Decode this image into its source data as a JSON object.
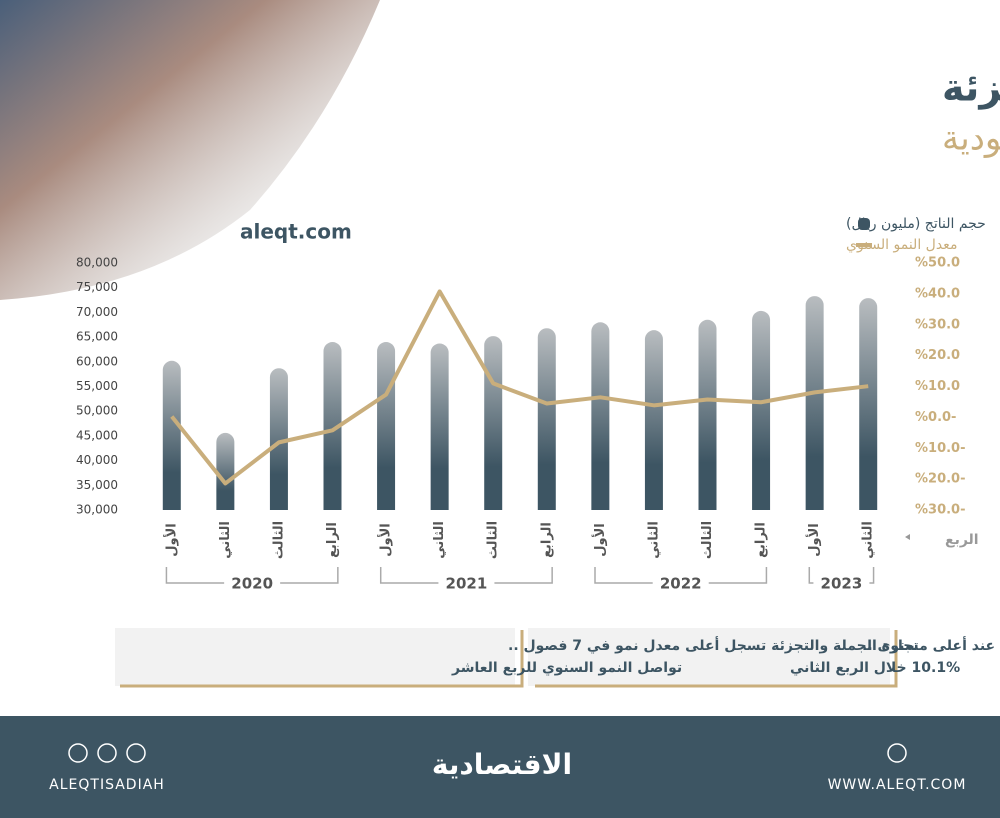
{
  "chart_data": {
    "type": "combo",
    "title": "حجم قطاع تجارة الجملة والتجزئة",
    "subtitle": "في السعودية",
    "source": "aleqt.com",
    "x_label": "الربع",
    "categories": [
      "الأول",
      "الثاني",
      "الثالث",
      "الرابع",
      "الأول",
      "الثاني",
      "الثالث",
      "الرابع",
      "الأول",
      "الثاني",
      "الثالث",
      "الرابع",
      "الأول",
      "الثاني"
    ],
    "groups": [
      {
        "label": "2020",
        "span": 4
      },
      {
        "label": "2021",
        "span": 4
      },
      {
        "label": "2022",
        "span": 4
      },
      {
        "label": "2023",
        "span": 2
      }
    ],
    "series": [
      {
        "name": "حجم الناتج (مليون ريال)",
        "type": "bar",
        "color": "#3d5563",
        "values": [
          60200,
          45600,
          58700,
          64000,
          64000,
          63700,
          65200,
          66800,
          68000,
          66400,
          68500,
          70300,
          73300,
          72900
        ]
      },
      {
        "name": "معدل النمو السنوي",
        "type": "line",
        "axis": "y2",
        "color": "#c9ae7c",
        "values": [
          0.3,
          -21.4,
          -8.1,
          -4.2,
          7.4,
          40.8,
          11,
          4.5,
          6.5,
          3.9,
          5.8,
          4.9,
          8.1,
          10.1
        ]
      }
    ],
    "ylim": [
      30000,
      80000
    ],
    "yticks": [
      {
        "value": 30000,
        "label": "30,000"
      },
      {
        "value": 35000,
        "label": "35,000"
      },
      {
        "value": 40000,
        "label": "40,000"
      },
      {
        "value": 45000,
        "label": "45,000"
      },
      {
        "value": 50000,
        "label": "50,000"
      },
      {
        "value": 55000,
        "label": "55,000"
      },
      {
        "value": 60000,
        "label": "60,000"
      },
      {
        "value": 65000,
        "label": "65,000"
      },
      {
        "value": 70000,
        "label": "70,000"
      },
      {
        "value": 75000,
        "label": "75,000"
      },
      {
        "value": 80000,
        "label": "80,000"
      }
    ],
    "y2lim": [
      -30,
      50
    ],
    "y2ticks": [
      {
        "value": -30,
        "label": "%30.0-"
      },
      {
        "value": -20,
        "label": "%20.0-"
      },
      {
        "value": -10,
        "label": "%10.0-"
      },
      {
        "value": 0,
        "label": "%0.0-"
      },
      {
        "value": 10,
        "label": "%10.0"
      },
      {
        "value": 20,
        "label": "%20.0"
      },
      {
        "value": 30,
        "label": "%30.0"
      },
      {
        "value": 40,
        "label": "%40.0"
      },
      {
        "value": 50,
        "label": "%50.0"
      }
    ]
  },
  "notes": [
    "مشاركة القطاع في الاقتصاد عند أعلى مستوى ..",
    "10.1% خلال الربع الثاني",
    "تجارة الجملة والتجزئة تسجل أعلى معدل نمو في 7 فصول ..",
    "تواصل النمو السنوي للربع العاشر"
  ],
  "footer": {
    "handle": "ALEQTISADIAH",
    "brand": "الاقتصادية",
    "website": "WWW.ALEQT.COM"
  }
}
